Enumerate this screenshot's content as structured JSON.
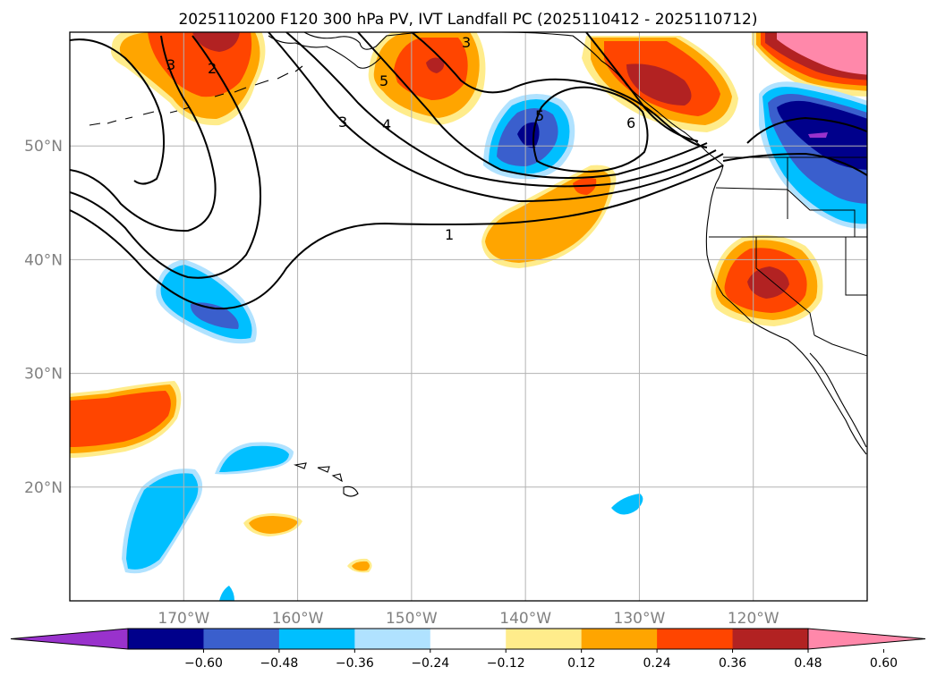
{
  "title": "2025110200 F120 300 hPa PV, IVT Landfall PC (2025110412 - 2025110712)",
  "map": {
    "lon_range": [
      -180,
      -110
    ],
    "lat_range": [
      10,
      60
    ],
    "lat_ticks": [
      {
        "value": 50,
        "label": "50°N"
      },
      {
        "value": 40,
        "label": "40°N"
      },
      {
        "value": 30,
        "label": "30°N"
      },
      {
        "value": 20,
        "label": "20°N"
      }
    ],
    "lon_ticks": [
      {
        "value": -170,
        "label": "170°W"
      },
      {
        "value": -160,
        "label": "160°W"
      },
      {
        "value": -150,
        "label": "150°W"
      },
      {
        "value": -140,
        "label": "140°W"
      },
      {
        "value": -130,
        "label": "130°W"
      },
      {
        "value": -120,
        "label": "120°W"
      }
    ],
    "gridlines": true,
    "contour_labels": [
      "1",
      "2",
      "3",
      "3",
      "3",
      "4",
      "5",
      "5",
      "6"
    ]
  },
  "colorbar": {
    "extend": "both",
    "colors": [
      "#9932cc",
      "#00008b",
      "#3a5fcd",
      "#00bfff",
      "#b0e2ff",
      "#ffffff",
      "#ffec8b",
      "#ffa500",
      "#ff4500",
      "#b22222",
      "#ff88aa"
    ],
    "tick_values": [
      -0.6,
      -0.48,
      -0.36,
      -0.24,
      -0.12,
      0.12,
      0.24,
      0.36,
      0.48,
      0.6
    ],
    "tick_labels": [
      "−0.60",
      "−0.48",
      "−0.36",
      "−0.24",
      "−0.12",
      "0.12",
      "0.24",
      "0.36",
      "0.48",
      "0.60"
    ]
  }
}
